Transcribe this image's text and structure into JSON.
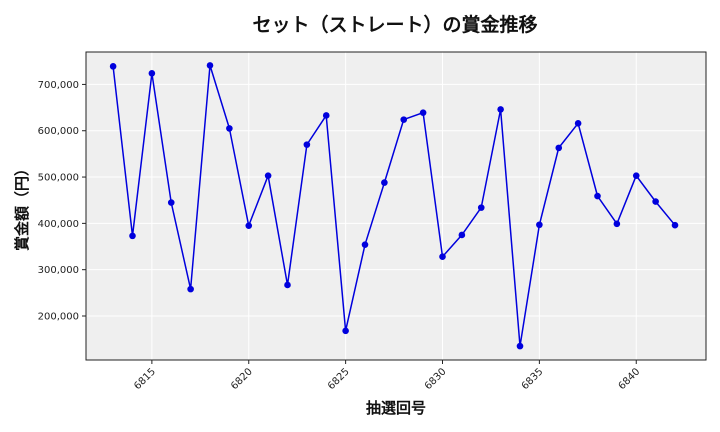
{
  "chart_data": {
    "type": "line",
    "title": "セット（ストレート）の賞金推移",
    "xlabel": "抽選回号",
    "ylabel": "賞金額（円）",
    "x": [
      6813,
      6814,
      6815,
      6816,
      6817,
      6818,
      6819,
      6820,
      6821,
      6822,
      6823,
      6824,
      6825,
      6826,
      6827,
      6828,
      6829,
      6830,
      6831,
      6832,
      6833,
      6834,
      6835,
      6836,
      6837,
      6838,
      6839,
      6840,
      6841,
      6842
    ],
    "series": [
      {
        "name": "セット（ストレート）",
        "color": "#0000dd",
        "values": [
          739000,
          373000,
          724000,
          445000,
          258000,
          741000,
          605000,
          395000,
          503000,
          267000,
          570000,
          633000,
          168000,
          354000,
          488000,
          624000,
          639000,
          328000,
          375000,
          434000,
          646000,
          135000,
          397000,
          563000,
          616000,
          459000,
          399000,
          503000,
          447000,
          396000
        ]
      }
    ],
    "xticks": [
      6815,
      6820,
      6825,
      6830,
      6835,
      6840
    ],
    "xtick_labels": [
      "6815",
      "6820",
      "6825",
      "6830",
      "6835",
      "6840"
    ],
    "yticks": [
      200000,
      300000,
      400000,
      500000,
      600000,
      700000
    ],
    "ytick_labels": [
      "200,000",
      "300,000",
      "400,000",
      "500,000",
      "600,000",
      "700,000"
    ],
    "xlim": [
      6811.6,
      6843.6
    ],
    "ylim": [
      105000,
      770000
    ],
    "grid": true,
    "legend": false,
    "background": "#efefef"
  }
}
